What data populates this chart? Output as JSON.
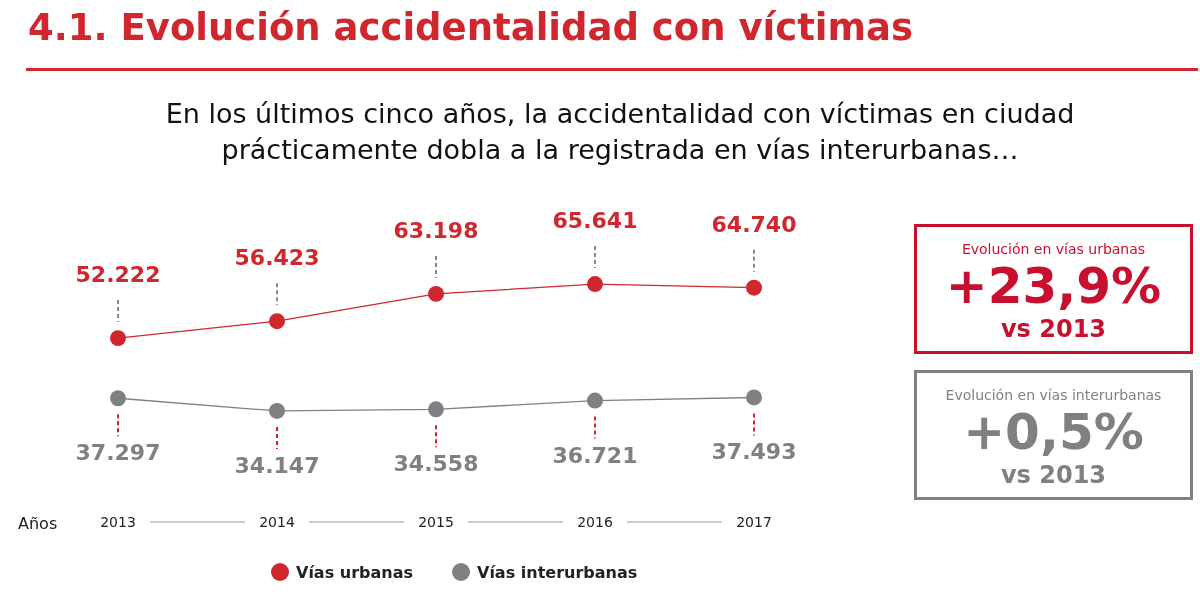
{
  "chart_data": [
    {
      "type": "line",
      "title": "4.1. Evolución accidentalidad con víctimas",
      "subtitle": "En los últimos cinco años, la accidentalidad con víctimas en ciudad prácticamente dobla a la registrada en vías interurbanas…",
      "xlabel": "Años",
      "categories": [
        "2013",
        "2014",
        "2015",
        "2016",
        "2017"
      ],
      "series": [
        {
          "name": "Vías urbanas",
          "color": "#d0262d",
          "values": [
            52222,
            56423,
            63198,
            65641,
            64740
          ],
          "value_labels": [
            "52.222",
            "56.423",
            "63.198",
            "65.641",
            "64.740"
          ]
        },
        {
          "name": "Vías interurbanas",
          "color": "#808084",
          "values": [
            37297,
            34147,
            34558,
            36721,
            37493
          ],
          "value_labels": [
            "37.297",
            "34.147",
            "34.558",
            "36.721",
            "37.493"
          ]
        }
      ],
      "marker": "circle",
      "legend": "bottom"
    },
    {
      "type": "other",
      "title": "Evolución en vías urbanas",
      "annotations": [
        "+23,9%",
        "vs 2013"
      ],
      "color": "#c8102e"
    },
    {
      "type": "other",
      "title": "Evolución en vías interurbanas",
      "annotations": [
        "+0,5%",
        "vs 2013"
      ],
      "color": "#808080"
    }
  ]
}
